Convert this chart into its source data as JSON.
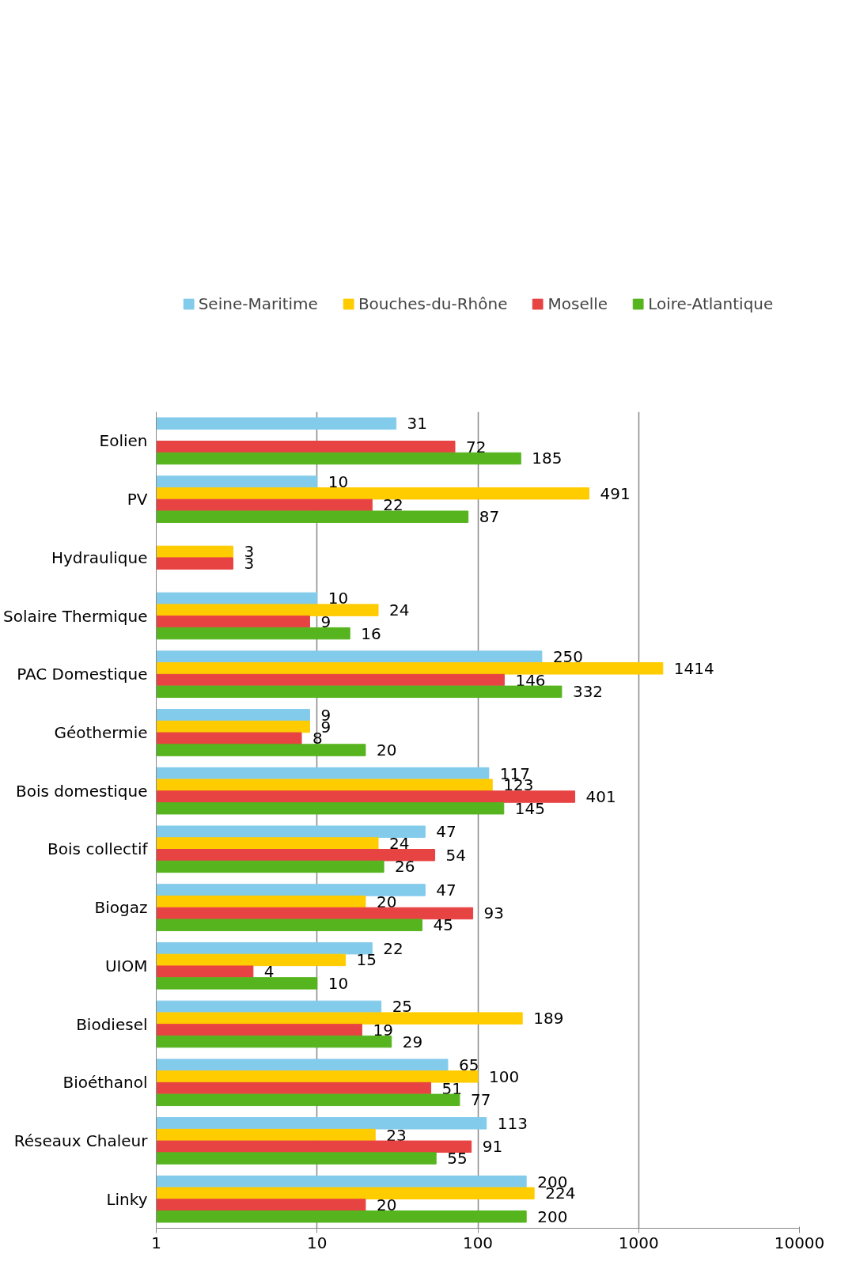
{
  "chart_data": {
    "type": "bar",
    "orientation": "horizontal",
    "log": "x",
    "grid": "x",
    "legend": "top",
    "data_labels": true,
    "categories": [
      "Eolien",
      "PV",
      "Hydraulique",
      "Solaire Thermique",
      "PAC Domestique",
      "Géothermie",
      "Bois domestique",
      "Bois collectif",
      "Biogaz",
      "UIOM",
      "Biodiesel",
      "Bioéthanol",
      "Réseaux Chaleur",
      "Linky"
    ],
    "xlim": [
      1,
      10000
    ],
    "xticks": [
      1,
      10,
      100,
      1000,
      10000
    ],
    "series": [
      {
        "name": "Seine-Maritime",
        "color": "#83cbeb",
        "values": [
          31,
          10,
          null,
          10,
          250,
          9,
          117,
          47,
          47,
          22,
          25,
          65,
          113,
          200
        ]
      },
      {
        "name": "Bouches-du-Rhône",
        "color": "#ffcc00",
        "values": [
          null,
          491,
          3,
          24,
          1414,
          9,
          123,
          24,
          20,
          15,
          189,
          100,
          23,
          224
        ]
      },
      {
        "name": "Moselle",
        "color": "#e84343",
        "values": [
          72,
          22,
          3,
          9,
          146,
          8,
          401,
          54,
          93,
          4,
          19,
          51,
          91,
          20
        ]
      },
      {
        "name": "Loire-Atlantique",
        "color": "#56b41e",
        "values": [
          185,
          87,
          null,
          16,
          332,
          20,
          145,
          26,
          45,
          10,
          29,
          77,
          55,
          200
        ]
      }
    ]
  }
}
